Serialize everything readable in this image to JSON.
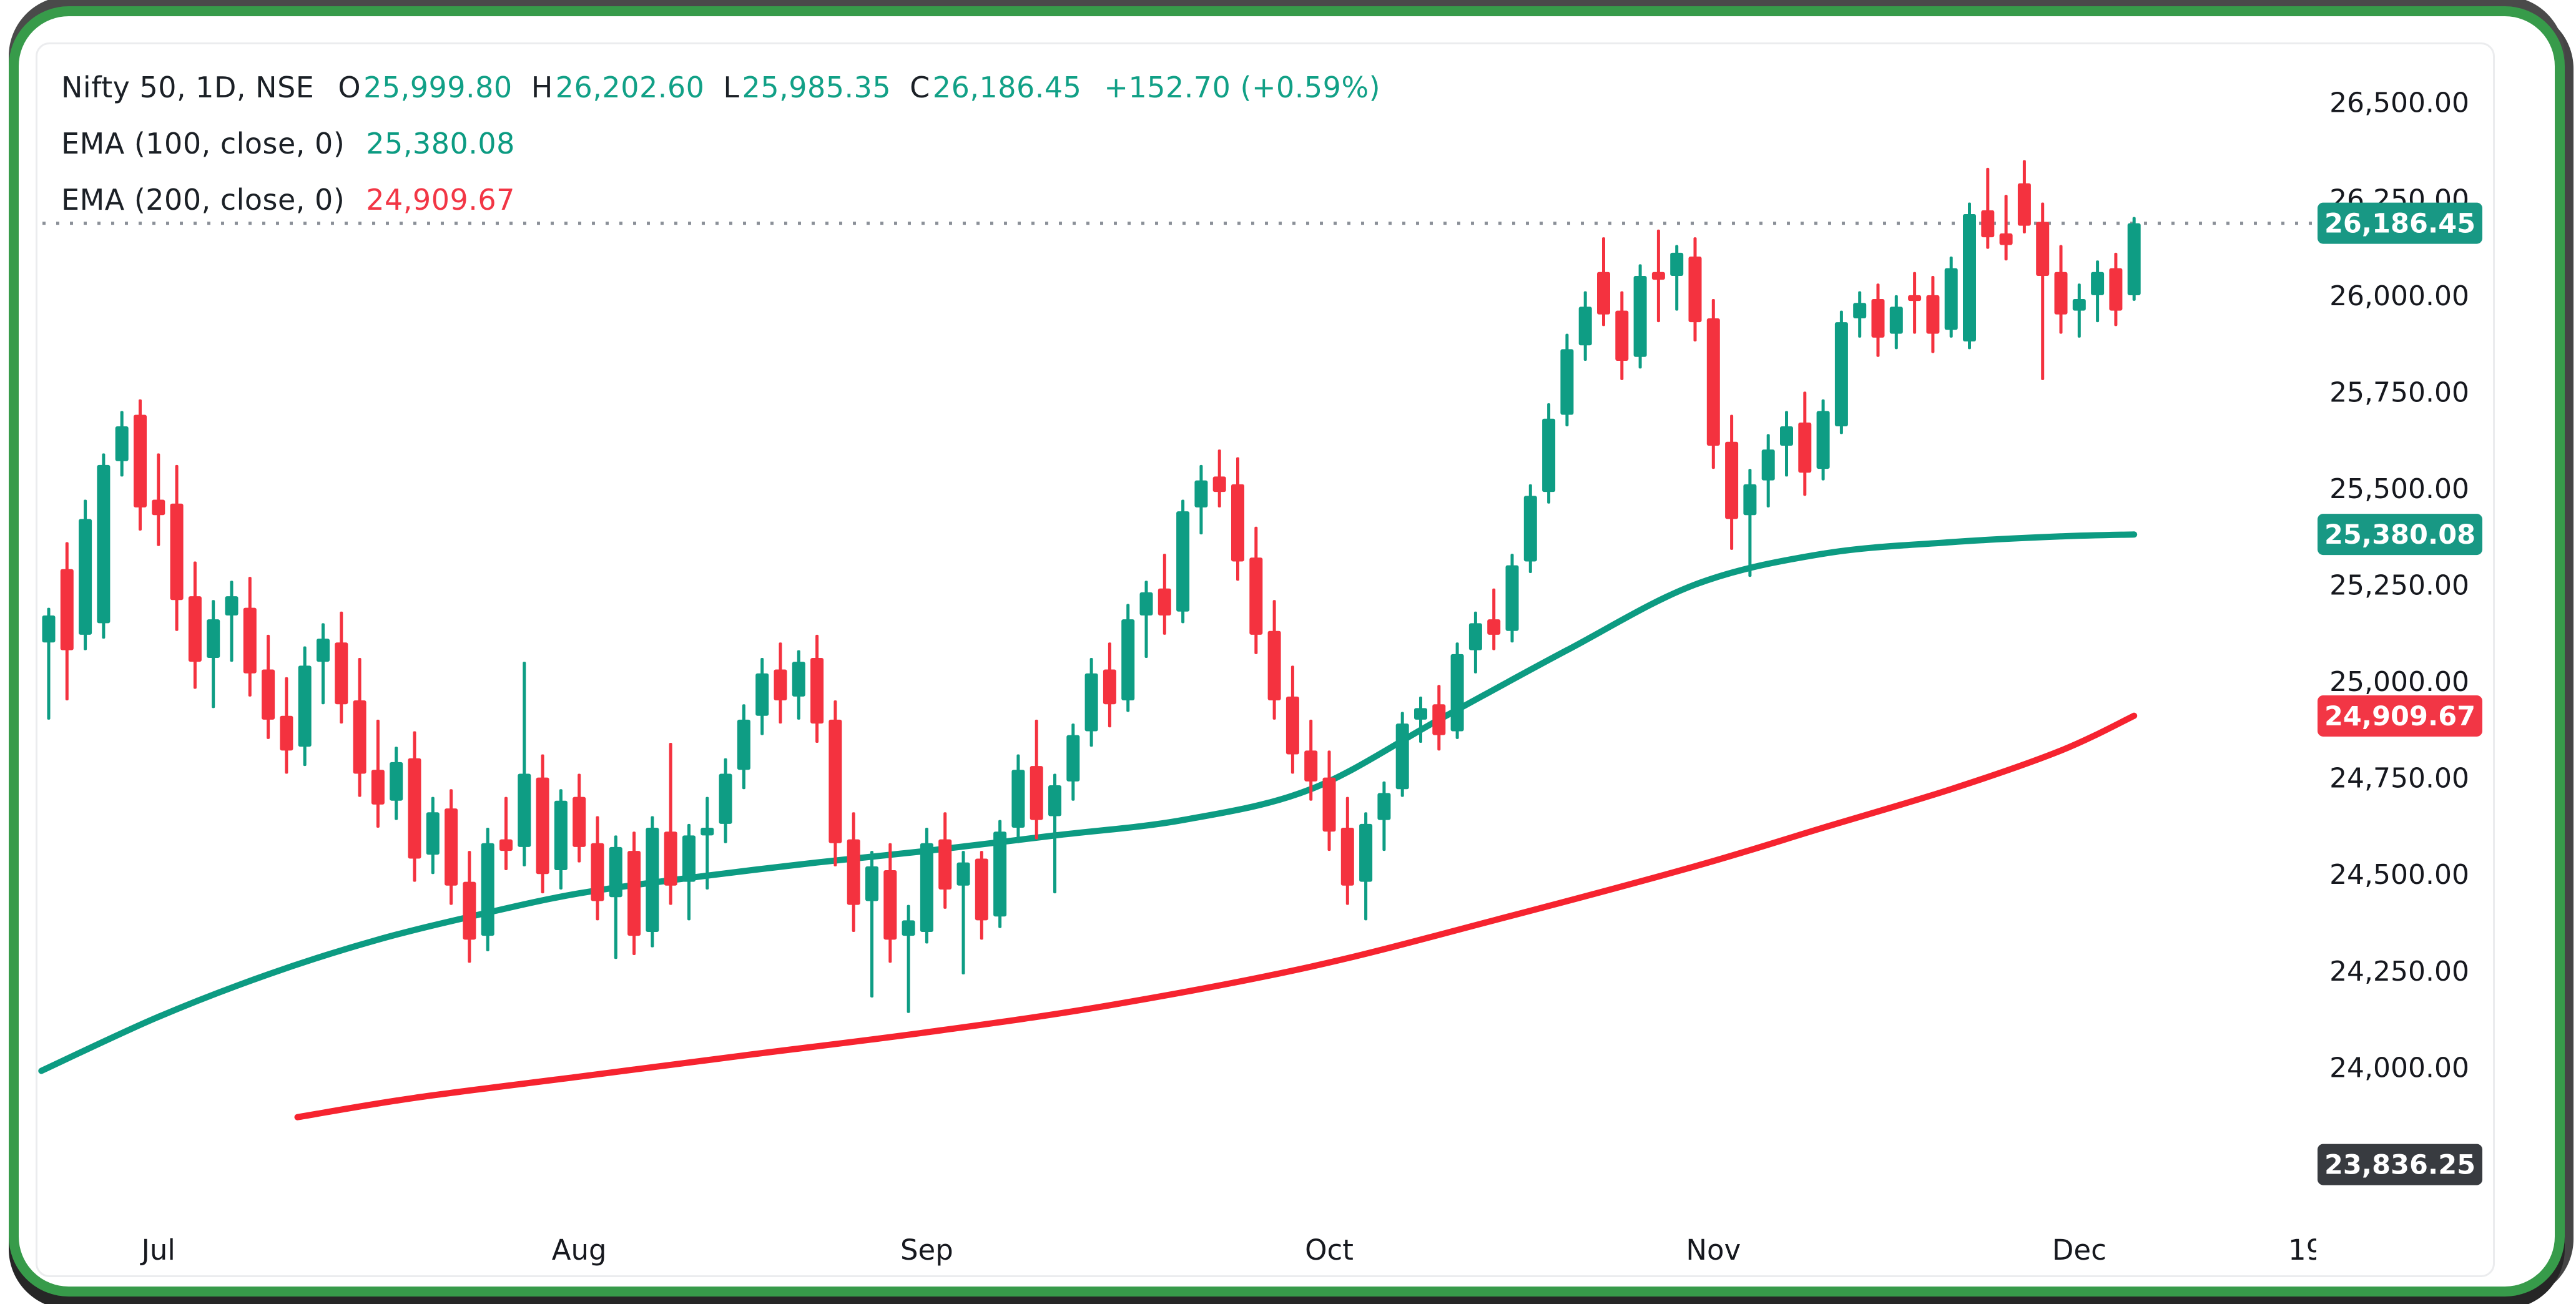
{
  "legend": {
    "symbol": "Nifty 50, 1D, NSE",
    "ohlc": {
      "o_label": "O",
      "o": "25,999.80",
      "h_label": "H",
      "h": "26,202.60",
      "l_label": "L",
      "l": "25,985.35",
      "c_label": "C",
      "c": "26,186.45",
      "change": "+152.70 (+0.59%)"
    },
    "indicators": [
      {
        "label": "EMA (100, close, 0)",
        "value": "25,380.08",
        "color": "#0C9B82"
      },
      {
        "label": "EMA (200, close, 0)",
        "value": "24,909.67",
        "color": "#F23645"
      }
    ]
  },
  "colors": {
    "bull": "#0E9D84",
    "bear": "#F4323F",
    "ema100": "#0C9B82",
    "ema200": "#F6232F",
    "value_teal": "#11A086",
    "value_red": "#F23645",
    "text_dark": "#1B2026",
    "dotted_line": "#8B9098",
    "badge_last": "#189884",
    "badge_ema100": "#189884",
    "badge_ema200": "#F23645",
    "badge_low": "#383B40",
    "frame_green": "#379B4A"
  },
  "axis": {
    "y_ticks": [
      {
        "price": 26500,
        "label": "26,500.00"
      },
      {
        "price": 26250,
        "label": "26,250.00"
      },
      {
        "price": 26000,
        "label": "26,000.00"
      },
      {
        "price": 25750,
        "label": "25,750.00"
      },
      {
        "price": 25500,
        "label": "25,500.00"
      },
      {
        "price": 25250,
        "label": "25,250.00"
      },
      {
        "price": 25000,
        "label": "25,000.00"
      },
      {
        "price": 24750,
        "label": "24,750.00"
      },
      {
        "price": 24500,
        "label": "24,500.00"
      },
      {
        "price": 24250,
        "label": "24,250.00"
      },
      {
        "price": 24000,
        "label": "24,000.00"
      }
    ],
    "y_badges": [
      {
        "name": "last-price-badge",
        "label": "26,186.45",
        "price": 26186.45,
        "bg": "#189884",
        "dy": 0
      },
      {
        "name": "ema100-badge",
        "label": "25,380.08",
        "price": 25380.08,
        "bg": "#189884",
        "dy": 0
      },
      {
        "name": "ema200-badge",
        "label": "24,909.67",
        "price": 24909.67,
        "bg": "#F23645",
        "dy": 0
      },
      {
        "name": "low-badge",
        "label": "23,836.25",
        "price": 23836.25,
        "bg": "#383B40",
        "dy": 55
      }
    ],
    "x_ticks": [
      {
        "label": "Jul",
        "bar": 6
      },
      {
        "label": "Aug",
        "bar": 29
      },
      {
        "label": "Sep",
        "bar": 48
      },
      {
        "label": "Oct",
        "bar": 70
      },
      {
        "label": "Nov",
        "bar": 91
      },
      {
        "label": "Dec",
        "bar": 111
      },
      {
        "label": "19",
        "bar": 123.4
      }
    ]
  },
  "chart_data": {
    "type": "candlestick",
    "title": "Nifty 50, 1D, NSE",
    "symbol": "Nifty 50",
    "interval": "1D",
    "exchange": "NSE",
    "last": {
      "open": 25999.8,
      "high": 26202.6,
      "low": 25985.35,
      "close": 26186.45,
      "change": 152.7,
      "change_pct": 0.59
    },
    "dotted_close_line": 26186.45,
    "ylim": [
      23470,
      26650
    ],
    "x_months": [
      "Jul",
      "Aug",
      "Sep",
      "Oct",
      "Nov",
      "Dec"
    ],
    "candles_format": [
      "open",
      "high",
      "low",
      "close"
    ],
    "candles": [
      [
        25100,
        25190,
        24900,
        25170
      ],
      [
        25290,
        25360,
        24950,
        25080
      ],
      [
        25120,
        25470,
        25080,
        25420
      ],
      [
        25150,
        25590,
        25110,
        25560
      ],
      [
        25570,
        25700,
        25530,
        25660
      ],
      [
        25690,
        25730,
        25390,
        25450
      ],
      [
        25470,
        25590,
        25350,
        25430
      ],
      [
        25460,
        25560,
        25130,
        25210
      ],
      [
        25220,
        25310,
        24980,
        25050
      ],
      [
        25060,
        25210,
        24930,
        25160
      ],
      [
        25170,
        25260,
        25050,
        25220
      ],
      [
        25190,
        25270,
        24960,
        25020
      ],
      [
        25030,
        25120,
        24850,
        24900
      ],
      [
        24910,
        25010,
        24760,
        24820
      ],
      [
        24830,
        25090,
        24780,
        25040
      ],
      [
        25050,
        25150,
        24940,
        25110
      ],
      [
        25100,
        25180,
        24890,
        24940
      ],
      [
        24950,
        25060,
        24700,
        24760
      ],
      [
        24770,
        24900,
        24620,
        24680
      ],
      [
        24690,
        24830,
        24640,
        24790
      ],
      [
        24800,
        24870,
        24480,
        24540
      ],
      [
        24550,
        24700,
        24500,
        24660
      ],
      [
        24670,
        24720,
        24420,
        24470
      ],
      [
        24480,
        24560,
        24270,
        24330
      ],
      [
        24340,
        24620,
        24300,
        24580
      ],
      [
        24590,
        24700,
        24510,
        24560
      ],
      [
        24570,
        25050,
        24520,
        24760
      ],
      [
        24750,
        24810,
        24450,
        24500
      ],
      [
        24510,
        24720,
        24460,
        24690
      ],
      [
        24700,
        24760,
        24530,
        24570
      ],
      [
        24580,
        24650,
        24380,
        24430
      ],
      [
        24440,
        24600,
        24280,
        24570
      ],
      [
        24560,
        24610,
        24290,
        24340
      ],
      [
        24350,
        24650,
        24310,
        24620
      ],
      [
        24610,
        24840,
        24420,
        24470
      ],
      [
        24480,
        24630,
        24380,
        24600
      ],
      [
        24600,
        24700,
        24460,
        24620
      ],
      [
        24630,
        24800,
        24580,
        24760
      ],
      [
        24770,
        24940,
        24720,
        24900
      ],
      [
        24910,
        25060,
        24860,
        25020
      ],
      [
        25030,
        25100,
        24890,
        24950
      ],
      [
        24960,
        25080,
        24900,
        25050
      ],
      [
        25060,
        25120,
        24840,
        24890
      ],
      [
        24900,
        24950,
        24520,
        24580
      ],
      [
        24590,
        24660,
        24350,
        24420
      ],
      [
        24430,
        24560,
        24180,
        24520
      ],
      [
        24510,
        24580,
        24270,
        24330
      ],
      [
        24340,
        24420,
        24140,
        24380
      ],
      [
        24350,
        24620,
        24320,
        24580
      ],
      [
        24590,
        24660,
        24410,
        24460
      ],
      [
        24470,
        24560,
        24240,
        24530
      ],
      [
        24540,
        24560,
        24330,
        24380
      ],
      [
        24390,
        24640,
        24360,
        24610
      ],
      [
        24620,
        24810,
        24580,
        24770
      ],
      [
        24780,
        24900,
        24590,
        24640
      ],
      [
        24650,
        24760,
        24450,
        24730
      ],
      [
        24740,
        24890,
        24690,
        24860
      ],
      [
        24870,
        25060,
        24830,
        25020
      ],
      [
        25030,
        25100,
        24880,
        24940
      ],
      [
        24950,
        25200,
        24920,
        25160
      ],
      [
        25170,
        25260,
        25060,
        25230
      ],
      [
        25240,
        25330,
        25120,
        25170
      ],
      [
        25180,
        25470,
        25150,
        25440
      ],
      [
        25450,
        25560,
        25380,
        25520
      ],
      [
        25530,
        25600,
        25450,
        25490
      ],
      [
        25510,
        25580,
        25260,
        25310
      ],
      [
        25320,
        25400,
        25070,
        25120
      ],
      [
        25130,
        25210,
        24900,
        24950
      ],
      [
        24960,
        25040,
        24760,
        24810
      ],
      [
        24820,
        24900,
        24690,
        24740
      ],
      [
        24750,
        24820,
        24560,
        24610
      ],
      [
        24620,
        24700,
        24420,
        24470
      ],
      [
        24480,
        24660,
        24380,
        24630
      ],
      [
        24640,
        24740,
        24560,
        24710
      ],
      [
        24720,
        24920,
        24700,
        24890
      ],
      [
        24900,
        24960,
        24840,
        24930
      ],
      [
        24940,
        24990,
        24820,
        24860
      ],
      [
        24870,
        25100,
        24850,
        25070
      ],
      [
        25080,
        25180,
        25020,
        25150
      ],
      [
        25160,
        25240,
        25080,
        25120
      ],
      [
        25130,
        25330,
        25100,
        25300
      ],
      [
        25310,
        25510,
        25280,
        25480
      ],
      [
        25490,
        25720,
        25460,
        25680
      ],
      [
        25690,
        25900,
        25660,
        25860
      ],
      [
        25870,
        26010,
        25830,
        25970
      ],
      [
        26060,
        26150,
        25920,
        25950
      ],
      [
        25960,
        26010,
        25780,
        25830
      ],
      [
        25840,
        26080,
        25810,
        26050
      ],
      [
        26060,
        26170,
        25930,
        26040
      ],
      [
        26050,
        26130,
        25960,
        26110
      ],
      [
        26100,
        26150,
        25880,
        25930
      ],
      [
        25940,
        25990,
        25550,
        25610
      ],
      [
        25620,
        25690,
        25340,
        25420
      ],
      [
        25430,
        25550,
        25270,
        25510
      ],
      [
        25520,
        25640,
        25450,
        25600
      ],
      [
        25610,
        25700,
        25530,
        25660
      ],
      [
        25670,
        25750,
        25480,
        25540
      ],
      [
        25550,
        25730,
        25520,
        25700
      ],
      [
        25660,
        25960,
        25640,
        25930
      ],
      [
        25940,
        26010,
        25890,
        25980
      ],
      [
        25990,
        26030,
        25840,
        25890
      ],
      [
        25900,
        26000,
        25860,
        25970
      ],
      [
        26000,
        26060,
        25900,
        25985
      ],
      [
        26000,
        26050,
        25850,
        25900
      ],
      [
        25910,
        26100,
        25890,
        26070
      ],
      [
        25880,
        26240,
        25860,
        26210
      ],
      [
        26220,
        26330,
        26120,
        26150
      ],
      [
        26160,
        26260,
        26090,
        26130
      ],
      [
        26290,
        26350,
        26160,
        26180
      ],
      [
        26190,
        26240,
        25780,
        26050
      ],
      [
        26060,
        26130,
        25900,
        25950
      ],
      [
        25960,
        26030,
        25890,
        25990
      ],
      [
        26000,
        26090,
        25930,
        26060
      ],
      [
        26070,
        26110,
        25920,
        25960
      ],
      [
        25999.8,
        26202.6,
        25985.35,
        26186.45
      ]
    ],
    "ema100_points": [
      [
        -0.4,
        23990
      ],
      [
        6,
        24130
      ],
      [
        12,
        24240
      ],
      [
        18,
        24330
      ],
      [
        24,
        24400
      ],
      [
        29,
        24450
      ],
      [
        35,
        24490
      ],
      [
        42,
        24530
      ],
      [
        48,
        24560
      ],
      [
        55,
        24600
      ],
      [
        62,
        24640
      ],
      [
        69,
        24720
      ],
      [
        76,
        24900
      ],
      [
        83,
        25080
      ],
      [
        90,
        25250
      ],
      [
        97,
        25330
      ],
      [
        104,
        25360
      ],
      [
        110,
        25375
      ],
      [
        114,
        25380
      ]
    ],
    "ema200_points": [
      [
        13.6,
        23870
      ],
      [
        20,
        23920
      ],
      [
        29,
        23975
      ],
      [
        38,
        24030
      ],
      [
        48,
        24090
      ],
      [
        58,
        24160
      ],
      [
        69,
        24260
      ],
      [
        79,
        24380
      ],
      [
        90,
        24520
      ],
      [
        97,
        24620
      ],
      [
        104,
        24720
      ],
      [
        110,
        24820
      ],
      [
        114,
        24910
      ]
    ]
  }
}
